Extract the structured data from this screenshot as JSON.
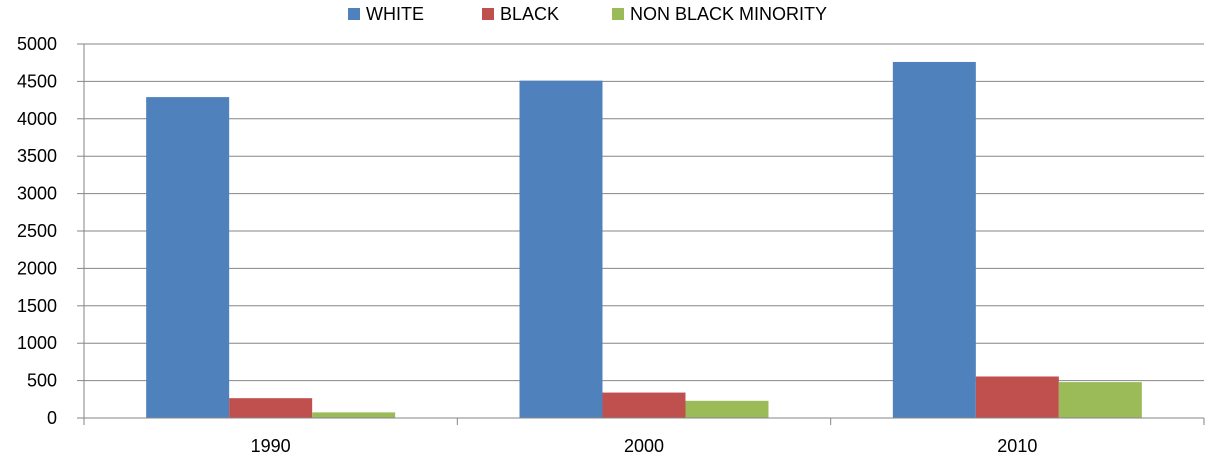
{
  "chart_data": {
    "type": "bar",
    "categories": [
      "1990",
      "2000",
      "2010"
    ],
    "series": [
      {
        "name": "WHITE",
        "color": "#4F81BD",
        "values": [
          4290,
          4510,
          4760
        ]
      },
      {
        "name": "BLACK",
        "color": "#C0504D",
        "values": [
          265,
          340,
          555
        ]
      },
      {
        "name": "NON BLACK MINORITY",
        "color": "#9BBB59",
        "values": [
          75,
          230,
          480
        ]
      }
    ],
    "ylim": [
      0,
      5000
    ],
    "yticks": [
      0,
      500,
      1000,
      1500,
      2000,
      2500,
      3000,
      3500,
      4000,
      4500,
      5000
    ],
    "grid": true,
    "legend_position": "top"
  }
}
